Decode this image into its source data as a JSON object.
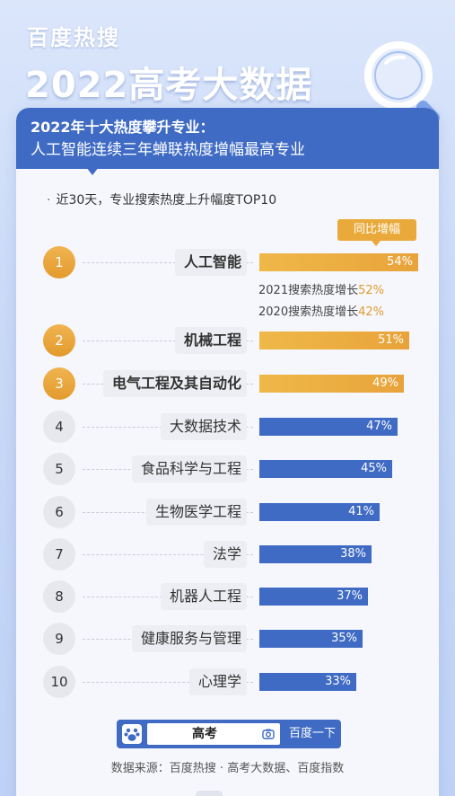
{
  "header": {
    "brand": "百度热搜",
    "title": "2022高考大数据"
  },
  "card": {
    "head_line1": "2022年十大热度攀升专业：",
    "head_line2": "人工智能连续三年蝉联热度增幅最高专业",
    "subtitle": "近30天，专业搜索热度上升幅度TOP10",
    "subtitle_dot": "·",
    "yoy_tag": "同比增幅"
  },
  "chart_data": {
    "type": "bar",
    "orientation": "horizontal",
    "title": "近30天，专业搜索热度上升幅度TOP10",
    "legend": "同比增幅",
    "ranks": [
      "1",
      "2",
      "3",
      "4",
      "5",
      "6",
      "7",
      "8",
      "9",
      "10"
    ],
    "categories": [
      "人工智能",
      "机械工程",
      "电气工程及其自动化",
      "大数据技术",
      "食品科学与工程",
      "生物医学工程",
      "法学",
      "机器人工程",
      "健康服务与管理",
      "心理学"
    ],
    "values": [
      54,
      51,
      49,
      47,
      45,
      41,
      38,
      37,
      35,
      33
    ],
    "value_labels": [
      "54%",
      "51%",
      "49%",
      "47%",
      "45%",
      "41%",
      "38%",
      "37%",
      "35%",
      "33%"
    ],
    "unit": "%",
    "highlight_top": 3,
    "colors": {
      "top": "#e9aa3b",
      "rest": "#3f6bc4"
    },
    "annotations": [
      {
        "text": "2021搜索热度增长",
        "value": "52%"
      },
      {
        "text": "2020搜索热度增长",
        "value": "42%"
      }
    ]
  },
  "search_bar": {
    "query": "高考",
    "button": "百度一下"
  },
  "footer": {
    "source": "数据来源：百度热搜 · 高考大数据、百度指数"
  }
}
